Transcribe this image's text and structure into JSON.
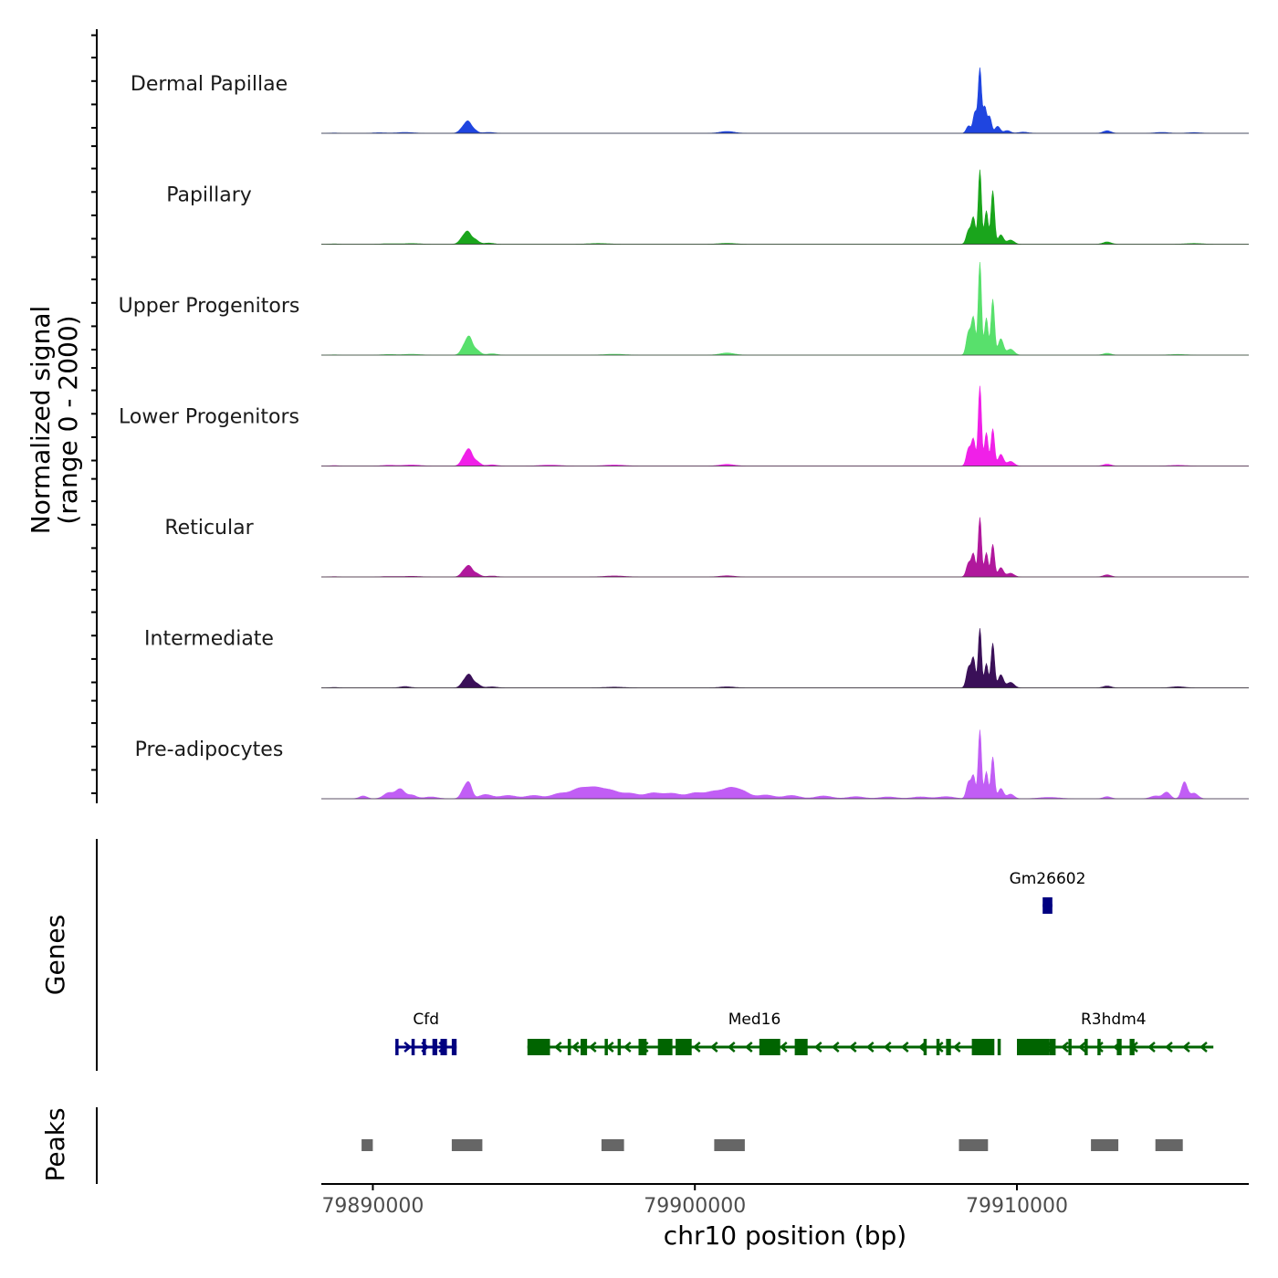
{
  "chart_data": {
    "type": "area",
    "title": "",
    "xlabel": "chr10 position (bp)",
    "ylabel_line1": "Normalized signal",
    "ylabel_line2": "(range 0 - 2000)",
    "ylim": [
      0,
      2000
    ],
    "xlim": [
      79888400,
      79917200
    ],
    "x_ticks": [
      79890000,
      79900000,
      79910000
    ],
    "x_tick_labels": [
      "79890000",
      "79900000",
      "79910000"
    ],
    "series": [
      {
        "name": "Dermal Papillae",
        "color": "#1F45E0",
        "peaks": [
          [
            79888800,
            6,
            120
          ],
          [
            79890200,
            12,
            180
          ],
          [
            79891000,
            18,
            250
          ],
          [
            79892800,
            115,
            110
          ],
          [
            79892950,
            180,
            90
          ],
          [
            79893100,
            95,
            120
          ],
          [
            79893600,
            20,
            150
          ],
          [
            79901000,
            40,
            220
          ],
          [
            79908500,
            160,
            70
          ],
          [
            79908700,
            460,
            60
          ],
          [
            79908850,
            1380,
            50
          ],
          [
            79909000,
            560,
            55
          ],
          [
            79909150,
            360,
            60
          ],
          [
            79909400,
            150,
            80
          ],
          [
            79909700,
            60,
            100
          ],
          [
            79910200,
            25,
            150
          ],
          [
            79912800,
            55,
            120
          ],
          [
            79914500,
            20,
            200
          ],
          [
            79915500,
            15,
            200
          ]
        ]
      },
      {
        "name": "Papillary",
        "color": "#1AA51C",
        "peaks": [
          [
            79888800,
            6,
            120
          ],
          [
            79890500,
            10,
            200
          ],
          [
            79891200,
            14,
            250
          ],
          [
            79892800,
            140,
            110
          ],
          [
            79892950,
            200,
            90
          ],
          [
            79893150,
            110,
            120
          ],
          [
            79893600,
            25,
            150
          ],
          [
            79897000,
            15,
            300
          ],
          [
            79901000,
            18,
            250
          ],
          [
            79908500,
            300,
            70
          ],
          [
            79908650,
            560,
            60
          ],
          [
            79908850,
            1600,
            50
          ],
          [
            79909050,
            720,
            55
          ],
          [
            79909250,
            1150,
            55
          ],
          [
            79909500,
            200,
            80
          ],
          [
            79909800,
            90,
            110
          ],
          [
            79912800,
            50,
            120
          ],
          [
            79915500,
            15,
            250
          ]
        ]
      },
      {
        "name": "Upper Progenitors",
        "color": "#58E06C",
        "peaks": [
          [
            79888800,
            6,
            120
          ],
          [
            79890500,
            14,
            200
          ],
          [
            79891200,
            18,
            250
          ],
          [
            79892850,
            200,
            110
          ],
          [
            79893000,
            300,
            90
          ],
          [
            79893200,
            120,
            120
          ],
          [
            79893700,
            30,
            150
          ],
          [
            79897500,
            20,
            300
          ],
          [
            79901000,
            45,
            220
          ],
          [
            79908500,
            500,
            70
          ],
          [
            79908650,
            780,
            60
          ],
          [
            79908850,
            2000,
            50
          ],
          [
            79909050,
            800,
            55
          ],
          [
            79909250,
            1200,
            55
          ],
          [
            79909500,
            350,
            80
          ],
          [
            79909800,
            130,
            110
          ],
          [
            79912800,
            40,
            120
          ],
          [
            79915000,
            15,
            250
          ]
        ]
      },
      {
        "name": "Lower Progenitors",
        "color": "#F020E8",
        "peaks": [
          [
            79888800,
            8,
            120
          ],
          [
            79890500,
            16,
            200
          ],
          [
            79891200,
            22,
            250
          ],
          [
            79892850,
            200,
            110
          ],
          [
            79893000,
            260,
            90
          ],
          [
            79893200,
            110,
            120
          ],
          [
            79893700,
            25,
            150
          ],
          [
            79895500,
            20,
            300
          ],
          [
            79897500,
            22,
            300
          ],
          [
            79901000,
            35,
            220
          ],
          [
            79908500,
            380,
            70
          ],
          [
            79908650,
            560,
            60
          ],
          [
            79908850,
            1720,
            50
          ],
          [
            79909050,
            720,
            55
          ],
          [
            79909250,
            800,
            55
          ],
          [
            79909500,
            250,
            80
          ],
          [
            79909800,
            100,
            110
          ],
          [
            79912800,
            40,
            120
          ],
          [
            79915000,
            15,
            250
          ]
        ]
      },
      {
        "name": "Reticular",
        "color": "#B0189C",
        "peaks": [
          [
            79888800,
            6,
            120
          ],
          [
            79890500,
            10,
            200
          ],
          [
            79891200,
            14,
            250
          ],
          [
            79892850,
            140,
            110
          ],
          [
            79893000,
            170,
            90
          ],
          [
            79893200,
            80,
            120
          ],
          [
            79893700,
            20,
            150
          ],
          [
            79897500,
            22,
            300
          ],
          [
            79901000,
            25,
            220
          ],
          [
            79908500,
            300,
            70
          ],
          [
            79908650,
            480,
            60
          ],
          [
            79908850,
            1280,
            50
          ],
          [
            79909050,
            520,
            55
          ],
          [
            79909250,
            700,
            55
          ],
          [
            79909500,
            200,
            80
          ],
          [
            79909800,
            80,
            110
          ],
          [
            79912800,
            45,
            120
          ]
        ]
      },
      {
        "name": "Intermediate",
        "color": "#3A1058",
        "peaks": [
          [
            79888800,
            8,
            120
          ],
          [
            79891000,
            28,
            150
          ],
          [
            79892850,
            150,
            110
          ],
          [
            79893000,
            210,
            90
          ],
          [
            79893200,
            100,
            120
          ],
          [
            79893700,
            22,
            150
          ],
          [
            79897500,
            15,
            300
          ],
          [
            79901000,
            22,
            220
          ],
          [
            79908500,
            440,
            70
          ],
          [
            79908650,
            620,
            60
          ],
          [
            79908850,
            1280,
            50
          ],
          [
            79909050,
            520,
            55
          ],
          [
            79909250,
            960,
            55
          ],
          [
            79909500,
            280,
            80
          ],
          [
            79909800,
            120,
            110
          ],
          [
            79912800,
            40,
            120
          ],
          [
            79915000,
            25,
            200
          ]
        ]
      },
      {
        "name": "Pre-adipocytes",
        "color": "#C15EF5",
        "peaks": [
          [
            79889700,
            60,
            120
          ],
          [
            79890500,
            130,
            160
          ],
          [
            79890850,
            200,
            130
          ],
          [
            79891200,
            80,
            150
          ],
          [
            79891800,
            40,
            200
          ],
          [
            79892850,
            220,
            110
          ],
          [
            79893000,
            260,
            90
          ],
          [
            79893500,
            90,
            200
          ],
          [
            79894200,
            70,
            250
          ],
          [
            79895000,
            70,
            250
          ],
          [
            79895800,
            110,
            250
          ],
          [
            79896400,
            200,
            250
          ],
          [
            79896900,
            210,
            250
          ],
          [
            79897400,
            160,
            250
          ],
          [
            79898000,
            110,
            250
          ],
          [
            79898700,
            120,
            250
          ],
          [
            79899300,
            110,
            250
          ],
          [
            79900000,
            120,
            250
          ],
          [
            79900600,
            150,
            250
          ],
          [
            79901100,
            200,
            220
          ],
          [
            79901500,
            140,
            220
          ],
          [
            79902200,
            80,
            250
          ],
          [
            79903000,
            70,
            250
          ],
          [
            79904000,
            60,
            250
          ],
          [
            79905000,
            45,
            250
          ],
          [
            79906000,
            40,
            250
          ],
          [
            79907000,
            40,
            250
          ],
          [
            79907800,
            45,
            250
          ],
          [
            79908500,
            360,
            70
          ],
          [
            79908650,
            480,
            60
          ],
          [
            79908850,
            1480,
            50
          ],
          [
            79909050,
            580,
            55
          ],
          [
            79909250,
            900,
            55
          ],
          [
            79909500,
            220,
            80
          ],
          [
            79909800,
            100,
            110
          ],
          [
            79911000,
            30,
            300
          ],
          [
            79912800,
            45,
            120
          ],
          [
            79914300,
            60,
            150
          ],
          [
            79914650,
            140,
            110
          ],
          [
            79915200,
            360,
            90
          ],
          [
            79915500,
            120,
            120
          ]
        ]
      }
    ],
    "genes_track_label": "Genes",
    "peaks_track_label": "Peaks",
    "genes": [
      {
        "name": "Cfd",
        "strand": "+",
        "color": "#000080",
        "start": 79890700,
        "end": 79892600,
        "row": 2,
        "exons": [
          [
            79890700,
            79890800
          ],
          [
            79891200,
            79891300
          ],
          [
            79891550,
            79891650
          ],
          [
            79891850,
            79892000
          ],
          [
            79892100,
            79892300
          ],
          [
            79892450,
            79892600
          ]
        ]
      },
      {
        "name": "Med16",
        "strand": "-",
        "color": "#006400",
        "start": 79894800,
        "end": 79908900,
        "row": 2,
        "exons": [
          [
            79894800,
            79895500
          ],
          [
            79896050,
            79896150
          ],
          [
            79896450,
            79896650
          ],
          [
            79897200,
            79897300
          ],
          [
            79897600,
            79897700
          ],
          [
            79898250,
            79898500
          ],
          [
            79898850,
            79899300
          ],
          [
            79899400,
            79899900
          ],
          [
            79902000,
            79902650
          ],
          [
            79903100,
            79903500
          ],
          [
            79907100,
            79907200
          ],
          [
            79907500,
            79907600
          ],
          [
            79907800,
            79907950
          ],
          [
            79908600,
            79909300
          ],
          [
            79909400,
            79909500
          ]
        ]
      },
      {
        "name": "Gm26602",
        "strand": "+",
        "color": "#000080",
        "start": 79910800,
        "end": 79911100,
        "row": 1,
        "exons": [
          [
            79910800,
            79911100
          ]
        ]
      },
      {
        "name": "R3hdm4",
        "strand": "-",
        "color": "#006400",
        "start": 79910000,
        "end": 79916100,
        "row": 2,
        "exons": [
          [
            79910000,
            79911000
          ],
          [
            79911000,
            79911200
          ],
          [
            79911600,
            79911700
          ],
          [
            79912100,
            79912200
          ],
          [
            79912500,
            79912600
          ],
          [
            79913100,
            79913250
          ],
          [
            79913500,
            79913650
          ]
        ]
      }
    ],
    "peaks": [
      [
        79889650,
        79890000
      ],
      [
        79892450,
        79893400
      ],
      [
        79897100,
        79897800
      ],
      [
        79900600,
        79901550
      ],
      [
        79908200,
        79909100
      ],
      [
        79912300,
        79913150
      ],
      [
        79914300,
        79915150
      ]
    ]
  }
}
